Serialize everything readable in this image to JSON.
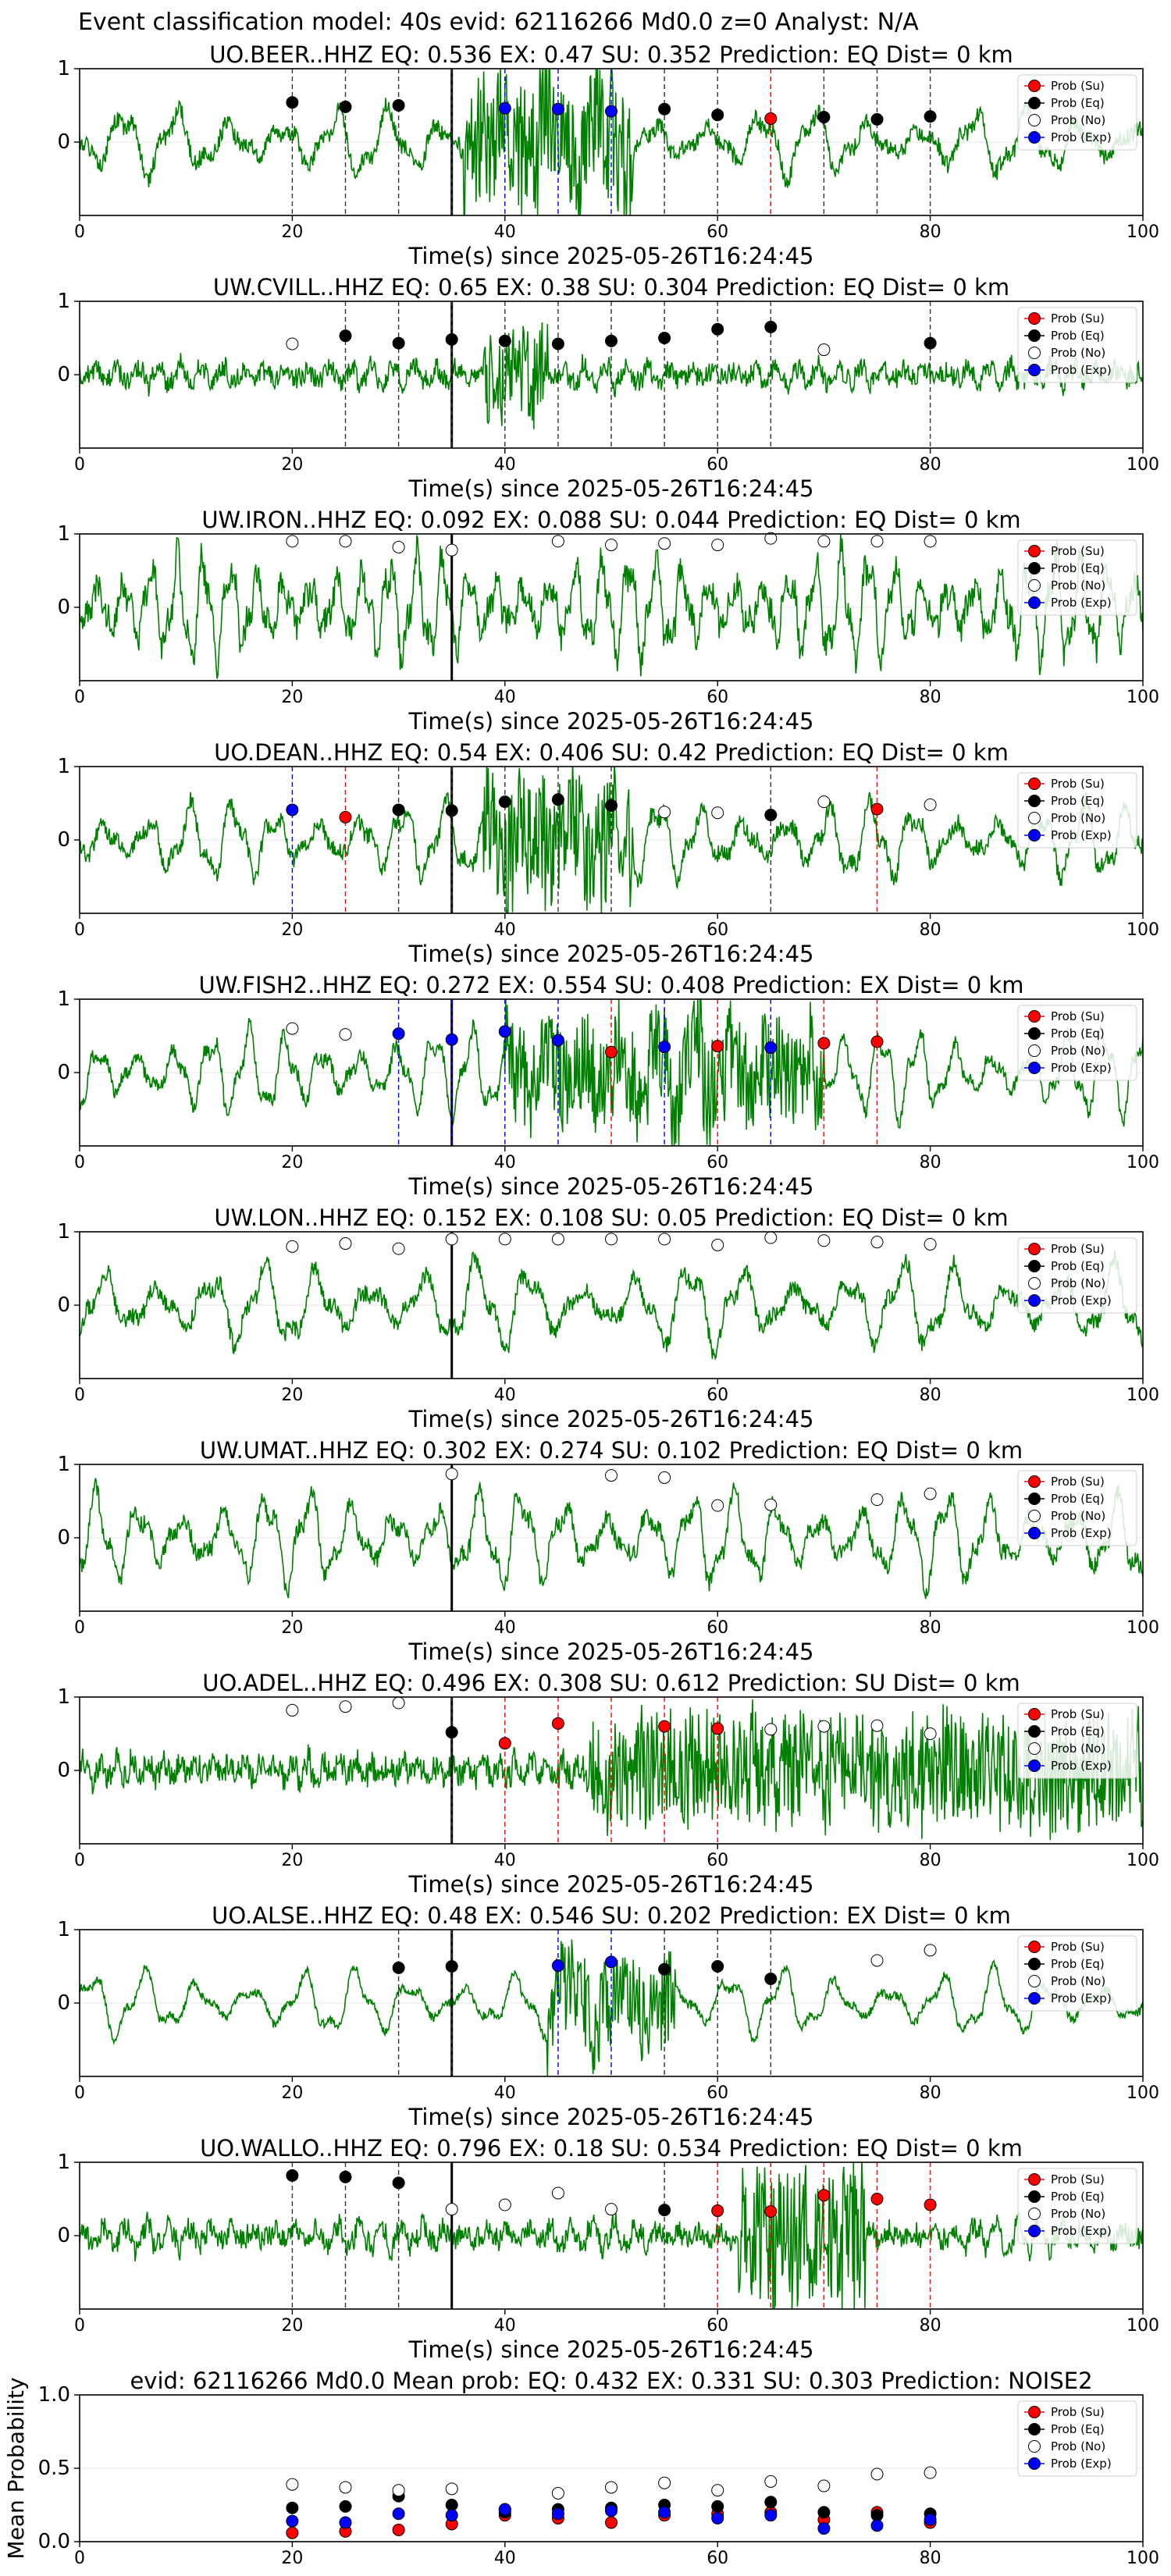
{
  "figure": {
    "suptitle": "Event classification model: 40s evid: 62116266 Md0.0 z=0 Analyst: N/A",
    "xlabel": "Time(s) since 2025-05-26T16:24:45",
    "colors": {
      "trace": "#008000",
      "su": "#ff0000",
      "eq": "#000000",
      "no": "#ffffff",
      "exp": "#0000ff",
      "pick": "#000000"
    },
    "legend_labels": {
      "su": "Prob (Su)",
      "eq": "Prob (Eq)",
      "no": "Prob (No)",
      "exp": "Prob (Exp)"
    }
  },
  "chart_data": [
    {
      "type": "scatter",
      "title": "UO.BEER..HHZ   EQ: 0.536  EX: 0.47  SU: 0.352   Prediction: EQ    Dist= 0 km",
      "xlabel": "Time(s) since 2025-05-26T16:24:45",
      "xlim": [
        0,
        100
      ],
      "ylim": [
        -1,
        1
      ],
      "xticks": [
        0,
        20,
        40,
        60,
        80,
        100
      ],
      "yticks": [
        1,
        0
      ],
      "pick_time": 35,
      "trace": {
        "amplitude": 0.35,
        "noise": 0.12,
        "period": 5,
        "burst": [
          36,
          52,
          0.9
        ],
        "seed": 1
      },
      "windows": [
        20,
        25,
        30,
        35,
        40,
        45,
        50,
        55,
        60,
        65,
        70,
        75,
        80
      ],
      "classes": [
        "eq",
        "eq",
        "eq",
        "eq",
        "exp",
        "exp",
        "exp",
        "eq",
        "eq",
        "su",
        "eq",
        "eq",
        "eq"
      ],
      "probs": [
        0.54,
        0.48,
        0.5,
        null,
        0.46,
        0.45,
        0.42,
        0.45,
        0.37,
        0.32,
        0.34,
        0.31,
        0.35
      ]
    },
    {
      "type": "scatter",
      "title": "UW.CVILL..HHZ   EQ: 0.65  EX: 0.38  SU: 0.304   Prediction: EQ    Dist= 0 km",
      "xlabel": "Time(s) since 2025-05-26T16:24:45",
      "xlim": [
        0,
        100
      ],
      "ylim": [
        -1,
        1
      ],
      "xticks": [
        0,
        20,
        40,
        60,
        80,
        100
      ],
      "yticks": [
        1,
        0
      ],
      "pick_time": 35,
      "trace": {
        "amplitude": 0.12,
        "noise": 0.14,
        "period": 2,
        "burst": [
          38,
          44,
          0.7
        ],
        "seed": 2
      },
      "windows": [
        20,
        25,
        30,
        35,
        40,
        45,
        50,
        55,
        60,
        65,
        70,
        75,
        80
      ],
      "classes": [
        "no",
        "eq",
        "eq",
        "eq",
        "eq",
        "eq",
        "eq",
        "eq",
        "eq",
        "eq",
        "no",
        "no",
        "eq"
      ],
      "probs": [
        0.42,
        0.53,
        0.43,
        0.48,
        0.46,
        0.42,
        0.46,
        0.5,
        0.62,
        0.65,
        0.34,
        null,
        0.43
      ]
    },
    {
      "type": "scatter",
      "title": "UW.IRON..HHZ   EQ: 0.092  EX: 0.088  SU: 0.044   Prediction: EQ    Dist= 0 km",
      "xlabel": "Time(s) since 2025-05-26T16:24:45",
      "xlim": [
        0,
        100
      ],
      "ylim": [
        -1,
        1
      ],
      "xticks": [
        0,
        20,
        40,
        60,
        80,
        100
      ],
      "yticks": [
        1,
        0
      ],
      "pick_time": 35,
      "trace": {
        "amplitude": 0.55,
        "noise": 0.2,
        "period": 2.5,
        "burst": null,
        "seed": 3
      },
      "windows": [
        20,
        25,
        30,
        35,
        40,
        45,
        50,
        55,
        60,
        65,
        70,
        75,
        80
      ],
      "classes": [
        "no",
        "no",
        "no",
        "no",
        "no",
        "no",
        "no",
        "no",
        "no",
        "no",
        "no",
        "no",
        "no"
      ],
      "probs": [
        0.9,
        0.9,
        0.82,
        0.78,
        null,
        0.9,
        0.85,
        0.87,
        0.85,
        0.94,
        0.9,
        0.9,
        0.9
      ]
    },
    {
      "type": "scatter",
      "title": "UO.DEAN..HHZ   EQ: 0.54  EX: 0.406  SU: 0.42   Prediction: EQ    Dist= 0 km",
      "xlabel": "Time(s) since 2025-05-26T16:24:45",
      "xlim": [
        0,
        100
      ],
      "ylim": [
        -1,
        1
      ],
      "xticks": [
        0,
        20,
        40,
        60,
        80,
        100
      ],
      "yticks": [
        1,
        0
      ],
      "pick_time": 35,
      "trace": {
        "amplitude": 0.4,
        "noise": 0.12,
        "period": 4,
        "burst": [
          38,
          52,
          0.85
        ],
        "seed": 4
      },
      "windows": [
        20,
        25,
        30,
        35,
        40,
        45,
        50,
        55,
        60,
        65,
        70,
        75,
        80
      ],
      "classes": [
        "exp",
        "su",
        "eq",
        "eq",
        "eq",
        "eq",
        "eq",
        "no",
        "no",
        "eq",
        "no",
        "su",
        "no"
      ],
      "probs": [
        0.41,
        0.31,
        0.41,
        0.4,
        0.52,
        0.55,
        0.47,
        0.38,
        0.37,
        0.34,
        0.52,
        0.42,
        0.48
      ]
    },
    {
      "type": "scatter",
      "title": "UW.FISH2..HHZ   EQ: 0.272  EX: 0.554  SU: 0.408   Prediction: EX    Dist= 0 km",
      "xlabel": "Time(s) since 2025-05-26T16:24:45",
      "xlim": [
        0,
        100
      ],
      "ylim": [
        -1,
        1
      ],
      "xticks": [
        0,
        20,
        40,
        60,
        80,
        100
      ],
      "yticks": [
        1,
        0
      ],
      "pick_time": 35,
      "trace": {
        "amplitude": 0.45,
        "noise": 0.1,
        "period": 3.5,
        "burst": [
          40,
          70,
          0.7
        ],
        "seed": 5
      },
      "windows": [
        20,
        25,
        30,
        35,
        40,
        45,
        50,
        55,
        60,
        65,
        70,
        75,
        80
      ],
      "classes": [
        "no",
        "no",
        "exp",
        "exp",
        "exp",
        "exp",
        "su",
        "exp",
        "su",
        "exp",
        "su",
        "su",
        "no"
      ],
      "probs": [
        0.6,
        0.52,
        0.53,
        0.45,
        0.56,
        0.44,
        0.28,
        0.35,
        0.36,
        0.34,
        0.4,
        0.42,
        null
      ]
    },
    {
      "type": "scatter",
      "title": "UW.LON..HHZ   EQ: 0.152  EX: 0.108  SU: 0.05   Prediction: EQ    Dist= 0 km",
      "xlabel": "Time(s) since 2025-05-26T16:24:45",
      "xlim": [
        0,
        100
      ],
      "ylim": [
        -1,
        1
      ],
      "xticks": [
        0,
        20,
        40,
        60,
        80,
        100
      ],
      "yticks": [
        1,
        0
      ],
      "pick_time": 35,
      "trace": {
        "amplitude": 0.45,
        "noise": 0.12,
        "period": 5,
        "burst": null,
        "seed": 6
      },
      "windows": [
        20,
        25,
        30,
        35,
        40,
        45,
        50,
        55,
        60,
        65,
        70,
        75,
        80
      ],
      "classes": [
        "no",
        "no",
        "no",
        "no",
        "no",
        "no",
        "no",
        "no",
        "no",
        "no",
        "no",
        "no",
        "no"
      ],
      "probs": [
        0.8,
        0.84,
        0.77,
        0.9,
        0.9,
        0.9,
        0.9,
        0.9,
        0.82,
        0.92,
        0.88,
        0.86,
        0.83
      ]
    },
    {
      "type": "scatter",
      "title": "UW.UMAT..HHZ   EQ: 0.302  EX: 0.274  SU: 0.102   Prediction: EQ    Dist= 0 km",
      "xlabel": "Time(s) since 2025-05-26T16:24:45",
      "xlim": [
        0,
        100
      ],
      "ylim": [
        -1,
        1
      ],
      "xticks": [
        0,
        20,
        40,
        60,
        80,
        100
      ],
      "yticks": [
        1,
        0
      ],
      "pick_time": 35,
      "trace": {
        "amplitude": 0.5,
        "noise": 0.12,
        "period": 4,
        "burst": null,
        "seed": 7
      },
      "windows": [
        20,
        25,
        30,
        35,
        40,
        45,
        50,
        55,
        60,
        65,
        70,
        75,
        80
      ],
      "classes": [
        "no",
        "no",
        "no",
        "no",
        "no",
        "no",
        "no",
        "no",
        "no",
        "no",
        "no",
        "no",
        "no"
      ],
      "probs": [
        null,
        null,
        null,
        0.87,
        null,
        null,
        0.85,
        0.82,
        0.44,
        0.45,
        null,
        0.52,
        0.6
      ]
    },
    {
      "type": "scatter",
      "title": "UO.ADEL..HHZ   EQ: 0.496  EX: 0.308  SU: 0.612   Prediction: SU    Dist= 0 km",
      "xlabel": "Time(s) since 2025-05-26T16:24:45",
      "xlim": [
        0,
        100
      ],
      "ylim": [
        -1,
        1
      ],
      "xticks": [
        0,
        20,
        40,
        60,
        80,
        100
      ],
      "yticks": [
        1,
        0
      ],
      "pick_time": 35,
      "trace": {
        "amplitude": 0.12,
        "noise": 0.18,
        "period": 1.5,
        "burst": [
          48,
          100,
          0.75
        ],
        "seed": 8
      },
      "windows": [
        20,
        25,
        30,
        35,
        40,
        45,
        50,
        55,
        60,
        65,
        70,
        75,
        80
      ],
      "classes": [
        "no",
        "no",
        "no",
        "eq",
        "su",
        "su",
        "su",
        "su",
        "su",
        "no",
        "no",
        "no",
        "no"
      ],
      "probs": [
        0.82,
        0.87,
        0.92,
        0.52,
        0.37,
        0.64,
        null,
        0.6,
        0.57,
        0.56,
        0.6,
        0.61,
        0.5
      ]
    },
    {
      "type": "scatter",
      "title": "UO.ALSE..HHZ   EQ: 0.48  EX: 0.546  SU: 0.202   Prediction: EX    Dist= 0 km",
      "xlabel": "Time(s) since 2025-05-26T16:24:45",
      "xlim": [
        0,
        100
      ],
      "ylim": [
        -1,
        1
      ],
      "xticks": [
        0,
        20,
        40,
        60,
        80,
        100
      ],
      "yticks": [
        1,
        0
      ],
      "pick_time": 35,
      "trace": {
        "amplitude": 0.35,
        "noise": 0.06,
        "period": 5,
        "burst": [
          44,
          56,
          0.6
        ],
        "seed": 9
      },
      "windows": [
        30,
        35,
        45,
        50,
        55,
        60,
        65,
        75,
        80
      ],
      "classes": [
        "eq",
        "eq",
        "exp",
        "exp",
        "eq",
        "eq",
        "eq",
        "no",
        "no"
      ],
      "probs": [
        0.48,
        0.5,
        0.51,
        0.56,
        0.46,
        0.5,
        0.33,
        0.58,
        0.72
      ]
    },
    {
      "type": "scatter",
      "title": "UO.WALLO..HHZ   EQ: 0.796  EX: 0.18  SU: 0.534   Prediction: EQ    Dist= 0 km",
      "xlabel": "Time(s) since 2025-05-26T16:24:45",
      "xlim": [
        0,
        100
      ],
      "ylim": [
        -1,
        1
      ],
      "xticks": [
        0,
        20,
        40,
        60,
        80,
        100
      ],
      "yticks": [
        1,
        0
      ],
      "pick_time": 35,
      "trace": {
        "amplitude": 0.15,
        "noise": 0.15,
        "period": 2,
        "burst": [
          62,
          74,
          0.95
        ],
        "seed": 10
      },
      "windows": [
        20,
        25,
        30,
        35,
        40,
        45,
        50,
        55,
        60,
        65,
        70,
        75,
        80
      ],
      "classes": [
        "eq",
        "eq",
        "eq",
        "no",
        "no",
        "no",
        "no",
        "eq",
        "su",
        "su",
        "su",
        "su",
        "su"
      ],
      "probs": [
        0.82,
        0.8,
        0.72,
        0.36,
        0.42,
        0.58,
        0.36,
        0.35,
        0.34,
        0.33,
        0.55,
        0.5,
        0.42
      ]
    },
    {
      "type": "scatter",
      "title": "evid: 62116266  Md0.0   Mean prob:   EQ: 0.432  EX: 0.331  SU: 0.303   Prediction: NOISE2",
      "xlabel": "",
      "ylabel": "Mean Probability",
      "xlim": [
        0,
        100
      ],
      "ylim": [
        0,
        1
      ],
      "xticks": [
        0,
        20,
        40,
        60,
        80,
        100
      ],
      "yticks": [
        0.0,
        0.5,
        1.0
      ],
      "ytick_labels": [
        "0.0",
        "0.5",
        "1.0"
      ],
      "x": [
        20,
        25,
        30,
        35,
        40,
        45,
        50,
        55,
        60,
        65,
        70,
        75,
        80
      ],
      "series": [
        {
          "name": "Prob (Su)",
          "key": "su",
          "values": [
            0.06,
            0.07,
            0.08,
            0.12,
            0.18,
            0.16,
            0.13,
            0.18,
            0.19,
            0.2,
            0.15,
            0.2,
            0.13
          ]
        },
        {
          "name": "Prob (Eq)",
          "key": "eq",
          "values": [
            0.23,
            0.24,
            0.31,
            0.25,
            0.2,
            0.22,
            0.23,
            0.25,
            0.24,
            0.27,
            0.2,
            0.18,
            0.19
          ]
        },
        {
          "name": "Prob (No)",
          "key": "no",
          "values": [
            0.39,
            0.37,
            0.35,
            0.36,
            0.22,
            0.33,
            0.37,
            0.4,
            0.35,
            0.41,
            0.38,
            0.46,
            0.47
          ]
        },
        {
          "name": "Prob (Exp)",
          "key": "exp",
          "values": [
            0.14,
            0.13,
            0.19,
            0.18,
            0.22,
            0.19,
            0.21,
            0.2,
            0.16,
            0.18,
            0.09,
            0.11,
            0.15
          ]
        }
      ]
    }
  ]
}
